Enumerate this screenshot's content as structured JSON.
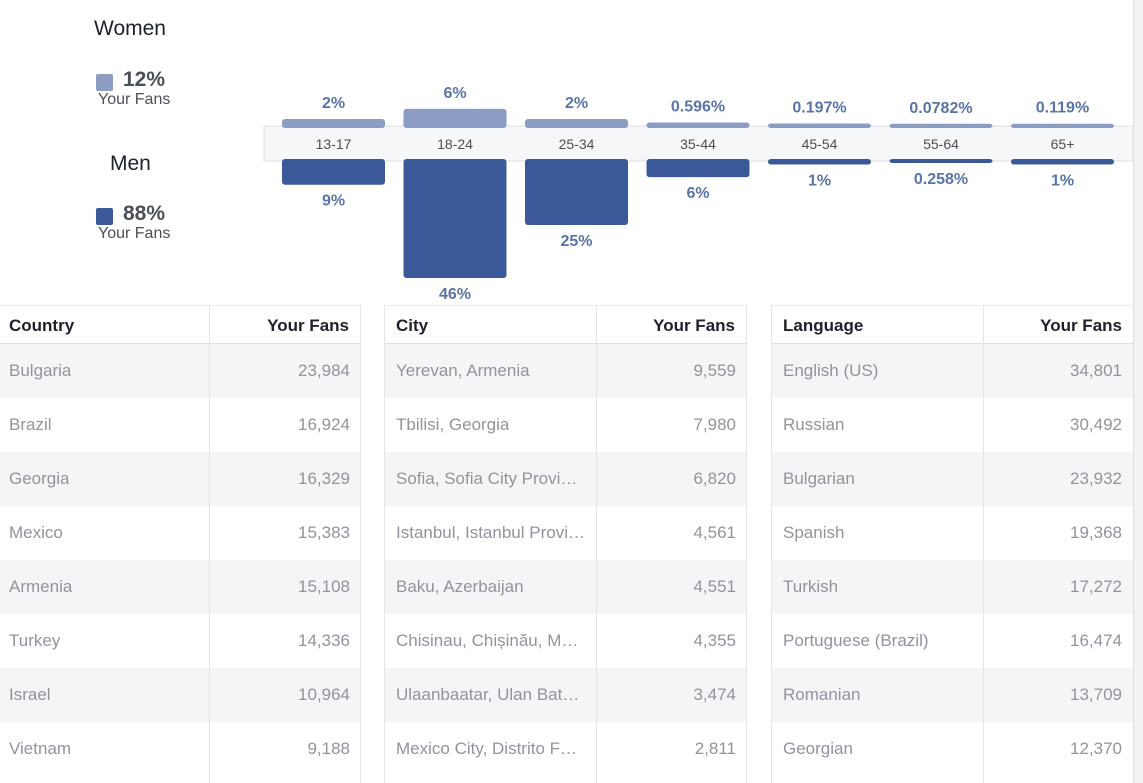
{
  "gender": {
    "women": {
      "label": "Women",
      "percent": "12%",
      "sub": "Your Fans",
      "color": "#8b9dc3"
    },
    "men": {
      "label": "Men",
      "percent": "88%",
      "sub": "Your Fans",
      "color": "#3b5998"
    }
  },
  "chart_data": {
    "type": "bar",
    "categories": [
      "13-17",
      "18-24",
      "25-34",
      "35-44",
      "45-54",
      "55-64",
      "65+"
    ],
    "series": [
      {
        "name": "Women",
        "values": [
          2,
          6,
          2,
          0.596,
          0.197,
          0.0782,
          0.119
        ],
        "labels": [
          "2%",
          "6%",
          "2%",
          "0.596%",
          "0.197%",
          "0.0782%",
          "0.119%"
        ],
        "color": "#8b9dc3"
      },
      {
        "name": "Men",
        "values": [
          9,
          46,
          25,
          6,
          1,
          0.258,
          1
        ],
        "labels": [
          "9%",
          "46%",
          "25%",
          "6%",
          "1%",
          "0.258%",
          "1%"
        ],
        "color": "#3b5998"
      }
    ],
    "grid": false
  },
  "tables": {
    "country": {
      "headers": [
        "Country",
        "Your Fans"
      ],
      "rows": [
        [
          "Bulgaria",
          "23,984"
        ],
        [
          "Brazil",
          "16,924"
        ],
        [
          "Georgia",
          "16,329"
        ],
        [
          "Mexico",
          "15,383"
        ],
        [
          "Armenia",
          "15,108"
        ],
        [
          "Turkey",
          "14,336"
        ],
        [
          "Israel",
          "10,964"
        ],
        [
          "Vietnam",
          "9,188"
        ]
      ]
    },
    "city": {
      "headers": [
        "City",
        "Your Fans"
      ],
      "rows": [
        [
          "Yerevan, Armenia",
          "9,559"
        ],
        [
          "Tbilisi, Georgia",
          "7,980"
        ],
        [
          "Sofia, Sofia City Provin…",
          "6,820"
        ],
        [
          "Istanbul, Istanbul Provi…",
          "4,561"
        ],
        [
          "Baku, Azerbaijan",
          "4,551"
        ],
        [
          "Chisinau, Chișinău, Mo…",
          "4,355"
        ],
        [
          "Ulaanbaatar, Ulan Bato…",
          "3,474"
        ],
        [
          "Mexico City, Distrito Fe…",
          "2,811"
        ]
      ]
    },
    "language": {
      "headers": [
        "Language",
        "Your Fans"
      ],
      "rows": [
        [
          "English (US)",
          "34,801"
        ],
        [
          "Russian",
          "30,492"
        ],
        [
          "Bulgarian",
          "23,932"
        ],
        [
          "Spanish",
          "19,368"
        ],
        [
          "Turkish",
          "17,272"
        ],
        [
          "Portuguese (Brazil)",
          "16,474"
        ],
        [
          "Romanian",
          "13,709"
        ],
        [
          "Georgian",
          "12,370"
        ]
      ]
    }
  }
}
